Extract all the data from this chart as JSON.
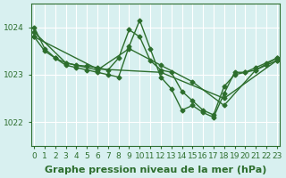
{
  "title": "Graphe pression niveau de la mer (hPa)",
  "bg_color": "#d8f0f0",
  "line_color": "#2d6e2d",
  "grid_color": "#ffffff",
  "xlim": [
    0,
    23
  ],
  "ylim": [
    1021.5,
    1024.5
  ],
  "yticks": [
    1022,
    1023,
    1024
  ],
  "xticks": [
    0,
    1,
    2,
    3,
    4,
    5,
    6,
    7,
    8,
    9,
    10,
    11,
    12,
    13,
    14,
    15,
    16,
    17,
    18,
    19,
    20,
    21,
    22,
    23
  ],
  "series": [
    {
      "x": [
        0,
        1,
        2,
        3,
        4,
        5,
        6,
        7,
        8,
        9,
        10,
        11,
        12,
        13,
        14,
        15,
        16,
        17,
        18,
        19,
        20,
        21,
        22,
        23
      ],
      "y": [
        1024.0,
        1023.55,
        1023.35,
        1023.2,
        1023.15,
        1023.1,
        1023.05,
        1023.0,
        1022.95,
        1023.6,
        1024.15,
        1023.55,
        1022.95,
        1022.7,
        1022.25,
        1022.35,
        1022.2,
        1022.1,
        1022.6,
        1023.05,
        1023.05,
        1023.1,
        1023.2,
        1023.3
      ]
    },
    {
      "x": [
        0,
        1,
        2,
        3,
        4,
        5,
        6,
        7,
        8,
        9,
        10,
        11,
        12,
        13,
        14,
        15,
        16,
        17,
        18,
        19,
        20,
        21,
        22,
        23
      ],
      "y": [
        1023.8,
        1023.5,
        1023.35,
        1023.25,
        1023.2,
        1023.18,
        1023.15,
        1023.1,
        1023.35,
        1023.95,
        1023.8,
        1023.3,
        1023.1,
        1023.05,
        1022.65,
        1022.45,
        1022.25,
        1022.15,
        1022.75,
        1023.0,
        1023.05,
        1023.15,
        1023.25,
        1023.35
      ]
    },
    {
      "x": [
        0,
        3,
        6,
        9,
        12,
        15,
        18,
        21,
        23
      ],
      "y": [
        1023.9,
        1023.25,
        1023.1,
        1023.55,
        1023.2,
        1022.85,
        1022.35,
        1023.1,
        1023.35
      ]
    },
    {
      "x": [
        0,
        6,
        12,
        18,
        23
      ],
      "y": [
        1023.8,
        1023.12,
        1023.05,
        1022.5,
        1023.3
      ]
    }
  ],
  "tick_fontsize": 6.5,
  "label_fontsize": 8,
  "marker": "D",
  "markersize": 2.5,
  "linewidth": 1.0
}
